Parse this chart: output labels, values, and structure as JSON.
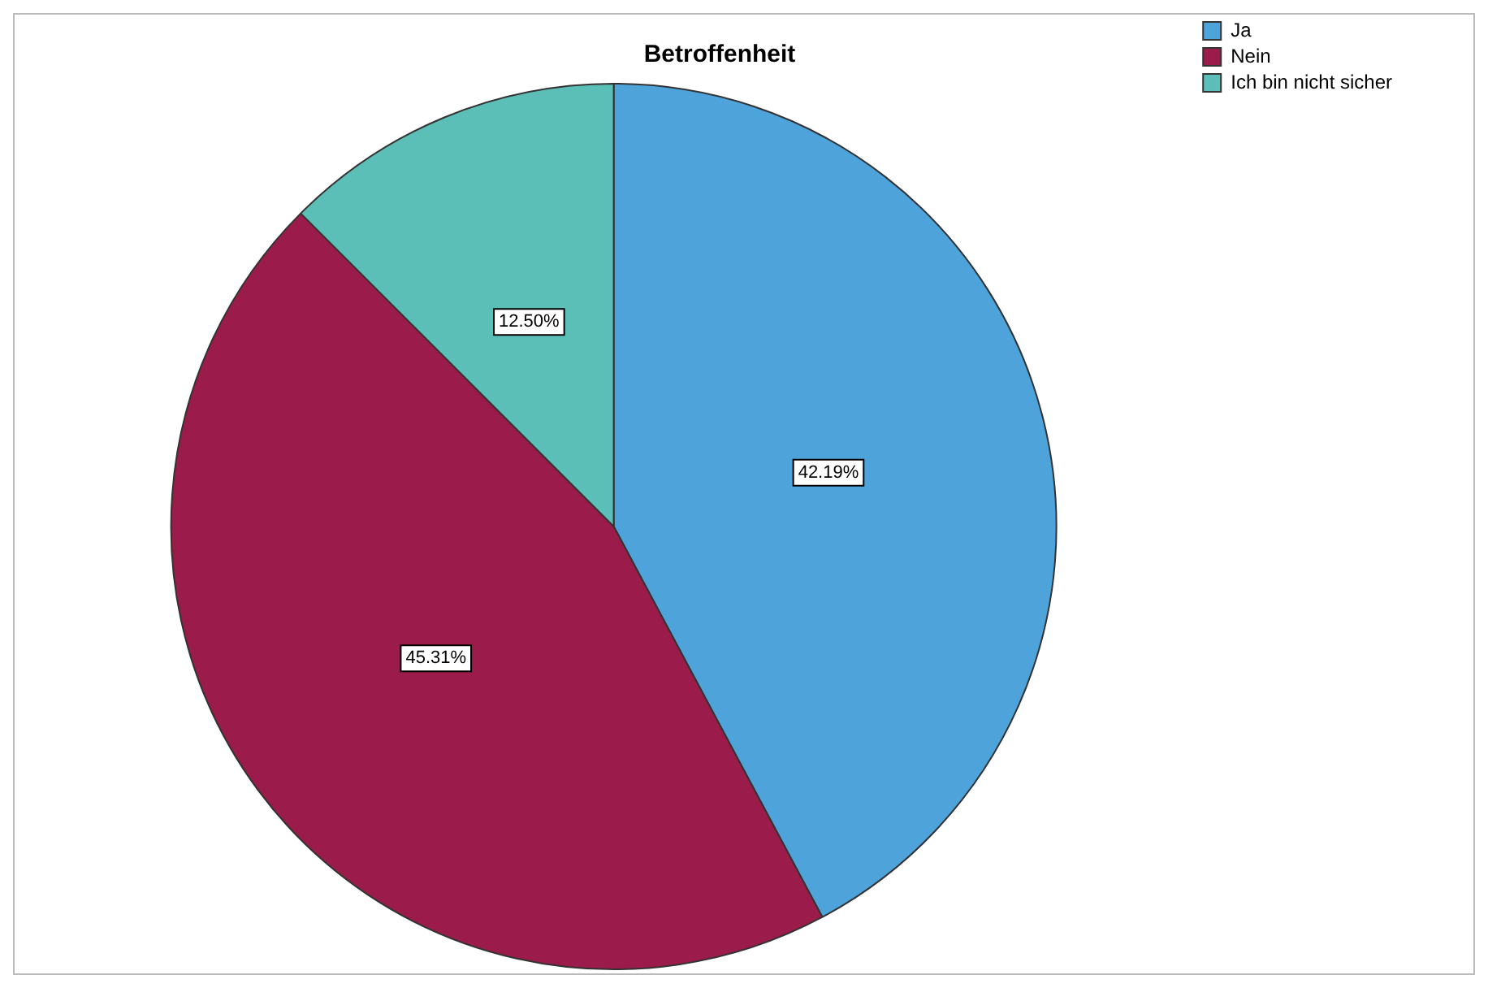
{
  "chart_data": {
    "type": "pie",
    "title": "Betroffenheit",
    "categories": [
      "Ja",
      "Nein",
      "Ich bin nicht sicher"
    ],
    "values": [
      42.19,
      45.31,
      12.5
    ],
    "colors": [
      "#4ea3db",
      "#9b1b4a",
      "#5bbfb8"
    ],
    "value_labels": [
      "42.19%",
      "45.31%",
      "12.50%"
    ],
    "legend": "top right"
  }
}
